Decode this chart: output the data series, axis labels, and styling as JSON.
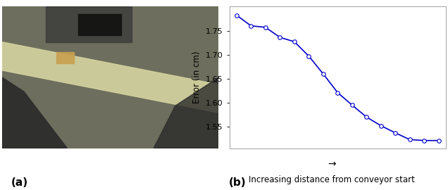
{
  "y_values": [
    1.782,
    1.76,
    1.757,
    1.736,
    1.727,
    1.697,
    1.66,
    1.621,
    1.595,
    1.57,
    1.552,
    1.537,
    1.523,
    1.521,
    1.521
  ],
  "x_values": [
    0,
    1,
    2,
    3,
    4,
    5,
    6,
    7,
    8,
    9,
    10,
    11,
    12,
    13,
    14
  ],
  "ylabel": "Error (in cm)",
  "xlabel_main": "Increasing distance from conveyor start",
  "arrow_label": "→",
  "line_color": "#0000cc",
  "marker": "o",
  "marker_facecolor": "white",
  "marker_edgecolor": "#0000cc",
  "marker_size": 4,
  "ylim": [
    1.505,
    1.8
  ],
  "yticks": [
    1.55,
    1.6,
    1.65,
    1.7,
    1.75
  ],
  "label_a": "(a)",
  "label_b": "(b)",
  "background_color": "#ffffff",
  "axes_edge_color": "#aaaaaa",
  "left_panel_color": "#888877"
}
